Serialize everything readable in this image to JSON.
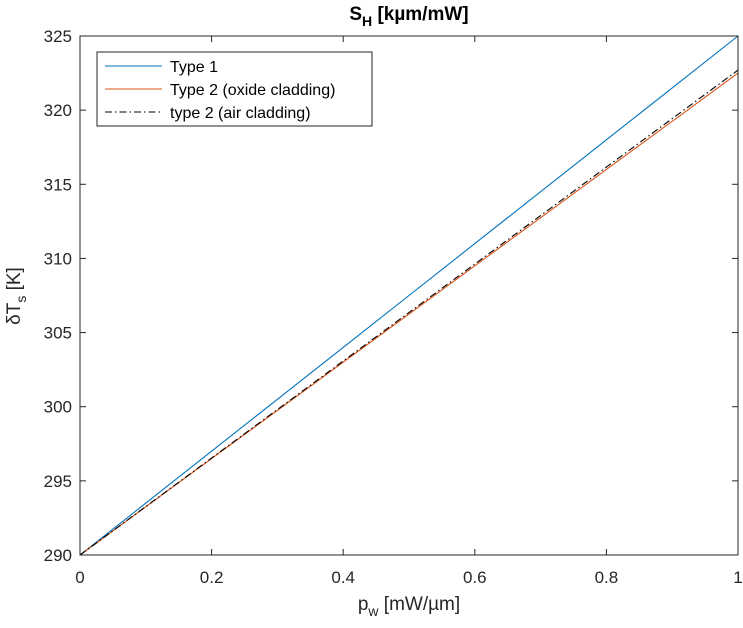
{
  "chart_data": {
    "type": "line",
    "title": "S",
    "title_subscript": "H",
    "title_suffix": " [kµm/mW]",
    "xlabel": "p",
    "xlabel_subscript": "w",
    "xlabel_suffix": " [mW/µm]",
    "ylabel": "δT",
    "ylabel_subscript": "s",
    "ylabel_suffix": " [K]",
    "xlim": [
      0,
      1
    ],
    "ylim": [
      290,
      325
    ],
    "xticks": [
      0,
      0.2,
      0.4,
      0.6,
      0.8,
      1
    ],
    "xtick_labels": [
      "0",
      "0.2",
      "0.4",
      "0.6",
      "0.8",
      "1"
    ],
    "yticks": [
      290,
      295,
      300,
      305,
      310,
      315,
      320,
      325
    ],
    "ytick_labels": [
      "290",
      "295",
      "300",
      "305",
      "310",
      "315",
      "320",
      "325"
    ],
    "grid": false,
    "legend_position": "top-left",
    "series": [
      {
        "name": "Type 1",
        "color": "#0072BD",
        "style": "solid",
        "x": [
          0,
          0.1,
          0.2,
          0.3,
          0.4,
          0.5,
          0.6,
          0.7,
          0.8,
          0.9,
          1
        ],
        "y": [
          290,
          293.5,
          297,
          300.5,
          304,
          307.5,
          311,
          314.5,
          318,
          321.5,
          325
        ]
      },
      {
        "name": "Type 2 (oxide cladding)",
        "color": "#D95319",
        "style": "solid",
        "x": [
          0,
          0.1,
          0.2,
          0.3,
          0.4,
          0.5,
          0.6,
          0.7,
          0.8,
          0.9,
          1
        ],
        "y": [
          290,
          293.25,
          296.5,
          299.75,
          303,
          306.25,
          309.5,
          312.75,
          316,
          319.25,
          322.5
        ]
      },
      {
        "name": "type 2 (air cladding)",
        "color": "#000000",
        "style": "dashdot",
        "x": [
          0,
          0.1,
          0.2,
          0.3,
          0.4,
          0.5,
          0.6,
          0.7,
          0.8,
          0.9,
          1
        ],
        "y": [
          290,
          293.27,
          296.54,
          299.81,
          303.08,
          306.35,
          309.62,
          312.89,
          316.16,
          319.43,
          322.7
        ]
      }
    ]
  }
}
